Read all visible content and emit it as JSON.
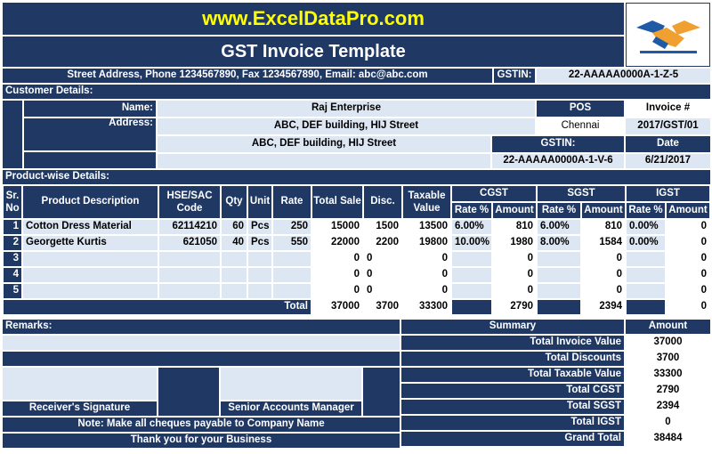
{
  "header": {
    "website": "www.ExcelDataPro.com",
    "title": "GST Invoice Template",
    "contact_line": "Street Address, Phone 1234567890, Fax 1234567890, Email: abc@abc.com",
    "gstin_label": "GSTIN:",
    "gstin_value": "22-AAAAA0000A-1-Z-5",
    "logo_icon": "handshake-icon"
  },
  "customer": {
    "section_label": "Customer Details:",
    "name_label": "Name:",
    "name_value": "Raj Enterprise",
    "address_label": "Address:",
    "address_line1": "ABC, DEF building, HIJ Street",
    "address_line2": "ABC, DEF building, HIJ Street",
    "pos_label": "POS",
    "pos_value": "Chennai",
    "gstin_label": "GSTIN:",
    "gstin_value": "22-AAAAA0000A-1-V-6",
    "invoice_label": "Invoice #",
    "invoice_value": "2017/GST/01",
    "date_label": "Date",
    "date_value": "6/21/2017"
  },
  "products": {
    "section_label": "Product-wise Details:",
    "headers": {
      "sr": "Sr.",
      "no": "No",
      "description": "Product Description",
      "hse1": "HSE/SAC",
      "hse2": "Code",
      "qty": "Qty",
      "unit": "Unit",
      "rate": "Rate",
      "total_sale": "Total Sale",
      "disc": "Disc.",
      "taxable1": "Taxable",
      "taxable2": "Value",
      "cgst": "CGST",
      "sgst": "SGST",
      "igst": "IGST",
      "rate_pct": "Rate %",
      "amount": "Amount"
    },
    "rows": [
      {
        "sr": "1",
        "desc": "Cotton Dress Material",
        "code": "62114210",
        "qty": "60",
        "unit": "Pcs",
        "rate": "250",
        "total_sale": "15000",
        "disc": "1500",
        "taxable": "13500",
        "cgst_rate": "6.00%",
        "cgst_amt": "810",
        "sgst_rate": "6.00%",
        "sgst_amt": "810",
        "igst_rate": "0.00%",
        "igst_amt": "0"
      },
      {
        "sr": "2",
        "desc": "Georgette Kurtis",
        "code": "621050",
        "qty": "40",
        "unit": "Pcs",
        "rate": "550",
        "total_sale": "22000",
        "disc": "2200",
        "taxable": "19800",
        "cgst_rate": "10.00%",
        "cgst_amt": "1980",
        "sgst_rate": "8.00%",
        "sgst_amt": "1584",
        "igst_rate": "0.00%",
        "igst_amt": "0"
      },
      {
        "sr": "3",
        "desc": "",
        "code": "",
        "qty": "",
        "unit": "",
        "rate": "",
        "total_sale": "0",
        "disc": "0",
        "taxable": "0",
        "cgst_rate": "",
        "cgst_amt": "0",
        "sgst_rate": "",
        "sgst_amt": "0",
        "igst_rate": "",
        "igst_amt": "0"
      },
      {
        "sr": "4",
        "desc": "",
        "code": "",
        "qty": "",
        "unit": "",
        "rate": "",
        "total_sale": "0",
        "disc": "0",
        "taxable": "0",
        "cgst_rate": "",
        "cgst_amt": "0",
        "sgst_rate": "",
        "sgst_amt": "0",
        "igst_rate": "",
        "igst_amt": "0"
      },
      {
        "sr": "5",
        "desc": "",
        "code": "",
        "qty": "",
        "unit": "",
        "rate": "",
        "total_sale": "0",
        "disc": "0",
        "taxable": "0",
        "cgst_rate": "",
        "cgst_amt": "0",
        "sgst_rate": "",
        "sgst_amt": "0",
        "igst_rate": "",
        "igst_amt": "0"
      }
    ],
    "total": {
      "label": "Total",
      "total_sale": "37000",
      "disc": "3700",
      "taxable": "33300",
      "cgst_amt": "2790",
      "sgst_amt": "2394",
      "igst_amt": "0"
    }
  },
  "remarks": {
    "label": "Remarks:",
    "receiver_signature": "Receiver's Signature",
    "senior_manager": "Senior Accounts Manager",
    "cheque_note": "Note: Make all cheques payable to Company Name",
    "thanks": "Thank you for your Business"
  },
  "summary": {
    "label": "Summary",
    "amount_label": "Amount",
    "items": [
      {
        "label": "Total Invoice Value",
        "value": "37000"
      },
      {
        "label": "Total Discounts",
        "value": "3700"
      },
      {
        "label": "Total Taxable Value",
        "value": "33300"
      },
      {
        "label": "Total CGST",
        "value": "2790"
      },
      {
        "label": "Total SGST",
        "value": "2394"
      },
      {
        "label": "Total IGST",
        "value": "0"
      },
      {
        "label": "Grand Total",
        "value": "38484"
      }
    ]
  },
  "colors": {
    "dark": "#1f3864",
    "light": "#dde6f3",
    "title_yellow": "#ffff00"
  }
}
